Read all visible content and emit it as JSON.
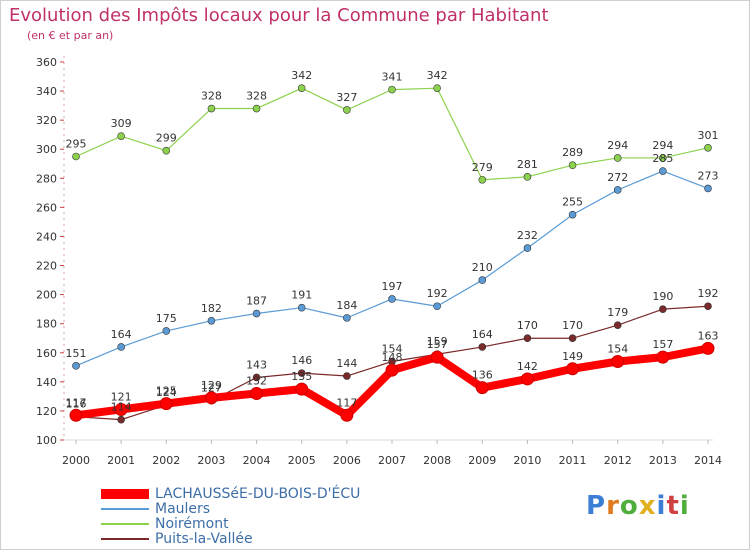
{
  "title": "Evolution des Impôts locaux pour la Commune par Habitant",
  "subtitle": "(en € et par an)",
  "logo": {
    "text": "Proxiti"
  },
  "chart_data": {
    "type": "line",
    "x": [
      2000,
      2001,
      2002,
      2003,
      2004,
      2005,
      2006,
      2007,
      2008,
      2009,
      2010,
      2011,
      2012,
      2013,
      2014
    ],
    "ylim": [
      100,
      360
    ],
    "yticks": [
      100,
      120,
      140,
      160,
      180,
      200,
      220,
      240,
      260,
      280,
      300,
      320,
      340,
      360
    ],
    "grid": false,
    "legend_position": "bottom-left",
    "series": [
      {
        "name": "LACHAUSSéE-DU-BOIS-D'ÉCU",
        "color": "#ff0000",
        "values": [
          117,
          121,
          125,
          129,
          132,
          135,
          117,
          148,
          157,
          136,
          142,
          149,
          154,
          157,
          163
        ]
      },
      {
        "name": "Maulers",
        "color": "#5b9bd5",
        "values": [
          151,
          164,
          175,
          182,
          187,
          191,
          184,
          197,
          192,
          210,
          232,
          255,
          272,
          285,
          273
        ]
      },
      {
        "name": "Noirémont",
        "color": "#8dd24e",
        "values": [
          295,
          309,
          299,
          328,
          328,
          342,
          327,
          341,
          342,
          279,
          281,
          289,
          294,
          294,
          301
        ]
      },
      {
        "name": "Puits-la-Vallée",
        "color": "#7a2a2a",
        "values": [
          116,
          114,
          124,
          127,
          143,
          146,
          144,
          154,
          159,
          164,
          170,
          170,
          179,
          190,
          192
        ]
      }
    ],
    "data_labels": [
      [
        "117",
        "121",
        "125",
        "129",
        "132",
        "135",
        "117",
        "148",
        "157",
        "136",
        "142",
        "149",
        "154",
        "157",
        "163"
      ],
      [
        "151",
        "164",
        "175",
        "182",
        "187",
        "191",
        "184",
        "197",
        "192",
        "210",
        "232",
        "255",
        "272",
        "285",
        "273"
      ],
      [
        "295",
        "309",
        "299",
        "328",
        "328",
        "342",
        "327",
        "341",
        "342",
        "279",
        "281",
        "289",
        "294",
        "294",
        "301"
      ],
      [
        "116",
        "114",
        "124",
        "127",
        "143",
        "146",
        "144",
        "154",
        "159",
        "164",
        "170",
        "170",
        "179",
        "190",
        "192"
      ]
    ]
  }
}
